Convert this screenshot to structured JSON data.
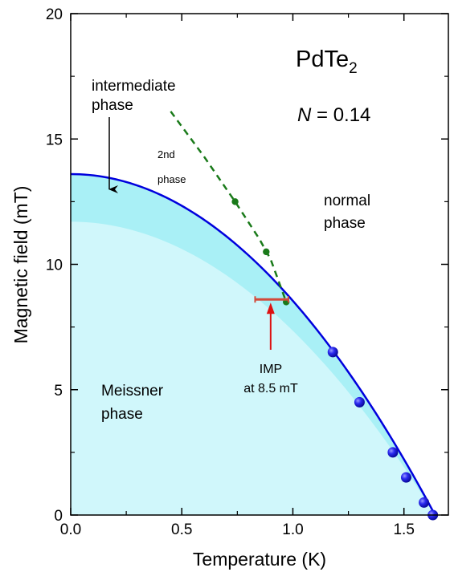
{
  "chart_data": {
    "type": "scatter",
    "xlabel": "Temperature (K)",
    "ylabel": "Magnetic field (mT)",
    "xlim": [
      0,
      1.7
    ],
    "ylim": [
      0,
      20
    ],
    "xticks": [
      "0.0",
      "0.5",
      "1.0",
      "1.5"
    ],
    "yticks": [
      "0",
      "5",
      "10",
      "15",
      "20"
    ],
    "xtick_values": [
      0,
      0.5,
      1.0,
      1.5
    ],
    "ytick_values": [
      0,
      5,
      10,
      15,
      20
    ],
    "grid": false,
    "material": "PdTe",
    "material_subscript": "2",
    "n_label": "N",
    "n_value": " = 0.14",
    "critical_field": {
      "Hc0": 13.6,
      "Tc": 1.64,
      "color": "#0000dd",
      "points": [
        {
          "x": 1.18,
          "y": 6.5
        },
        {
          "x": 1.3,
          "y": 4.5
        },
        {
          "x": 1.45,
          "y": 2.5
        },
        {
          "x": 1.51,
          "y": 1.5
        },
        {
          "x": 1.59,
          "y": 0.5
        },
        {
          "x": 1.63,
          "y": 0.0
        }
      ]
    },
    "meissner_boundary": {
      "H0": 11.7,
      "Tc": 1.64,
      "color": "#d0f7fb"
    },
    "intermediate_region_color": "#a9f0f6",
    "second_phase_line": {
      "color": "#1a7a1a",
      "curve": [
        {
          "x": 0.45,
          "y": 16.1
        },
        {
          "x": 0.6,
          "y": 14.3
        },
        {
          "x": 0.74,
          "y": 12.5
        },
        {
          "x": 0.85,
          "y": 11.0
        },
        {
          "x": 0.9,
          "y": 10.2
        },
        {
          "x": 0.97,
          "y": 8.5
        }
      ],
      "points": [
        {
          "x": 0.74,
          "y": 12.5
        },
        {
          "x": 0.88,
          "y": 10.5
        },
        {
          "x": 0.97,
          "y": 8.5
        }
      ]
    },
    "imp": {
      "color": "#dd1111",
      "bar_color": "#d24a3a",
      "y": 8.6,
      "x_min": 0.83,
      "x_max": 0.98,
      "arrow_x": 0.9,
      "label_line1": "IMP",
      "label_line2": "at 8.5 mT"
    },
    "annotations": {
      "intermediate_line1": "intermediate",
      "intermediate_line2": "phase",
      "second_line1": "2nd",
      "second_line2": "phase",
      "normal_line1": "normal",
      "normal_line2": "phase",
      "meissner_line1": "Meissner",
      "meissner_line2": "phase"
    }
  }
}
